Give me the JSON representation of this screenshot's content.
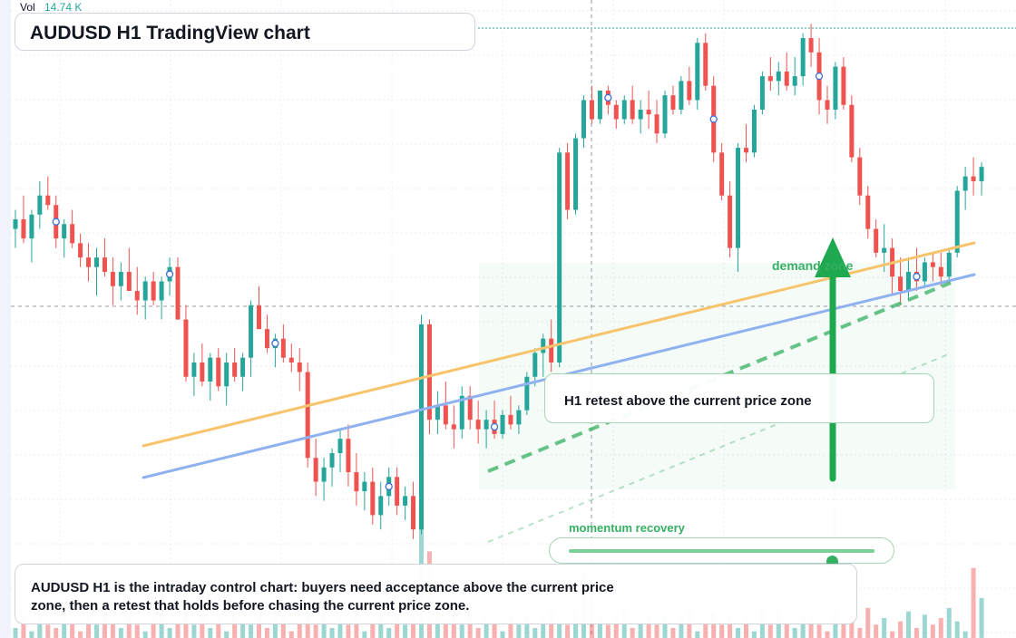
{
  "header": {
    "vol_label": "Vol",
    "vol_value": "14.74 K",
    "title": "AUDUSD H1 TradingView chart"
  },
  "annotations": {
    "callout": "H1 retest above the current price zone",
    "zone_label": "demand zone",
    "momentum_label": "momentum recovery",
    "momentum_level": 0.86,
    "description": "AUDUSD H1 is the intraday control chart: buyers need acceptance above the current price zone, then a retest that holds before chasing the current price zone."
  },
  "colors": {
    "up": "#26a69a",
    "down": "#ef5350",
    "trend_orange": "#f7c46c",
    "trend_blue": "#8fb1f0",
    "accent_green": "#35b063"
  },
  "chart_data": {
    "type": "candlestick",
    "symbol": "AUDUSD",
    "timeframe": "H1",
    "ylim": [
      0,
      100
    ],
    "x_count": 120,
    "candles": [
      [
        66,
        70,
        62,
        68
      ],
      [
        68,
        73,
        63,
        64
      ],
      [
        64,
        70,
        59,
        69
      ],
      [
        69,
        76,
        66,
        73
      ],
      [
        73,
        77,
        70,
        71
      ],
      [
        71,
        73,
        62,
        64
      ],
      [
        64,
        68,
        60,
        67
      ],
      [
        67,
        70,
        62,
        63
      ],
      [
        63,
        65,
        58,
        60
      ],
      [
        60,
        63,
        55,
        58
      ],
      [
        58,
        62,
        52,
        60
      ],
      [
        60,
        64,
        56,
        57
      ],
      [
        57,
        60,
        50,
        54
      ],
      [
        54,
        59,
        51,
        57
      ],
      [
        57,
        62,
        53,
        53
      ],
      [
        53,
        58,
        48,
        51
      ],
      [
        51,
        56,
        47,
        55
      ],
      [
        55,
        57,
        50,
        51
      ],
      [
        51,
        56,
        47,
        55
      ],
      [
        55,
        60,
        52,
        58
      ],
      [
        58,
        60,
        47,
        47
      ],
      [
        47,
        50,
        34,
        35
      ],
      [
        35,
        40,
        31,
        38
      ],
      [
        38,
        42,
        33,
        34
      ],
      [
        34,
        40,
        30,
        39
      ],
      [
        39,
        41,
        32,
        33
      ],
      [
        33,
        40,
        29,
        38
      ],
      [
        38,
        41,
        34,
        35
      ],
      [
        35,
        40,
        32,
        39
      ],
      [
        39,
        51,
        35,
        50
      ],
      [
        50,
        54,
        45,
        45
      ],
      [
        45,
        48,
        40,
        41
      ],
      [
        41,
        44,
        37,
        43
      ],
      [
        43,
        46,
        38,
        39
      ],
      [
        39,
        42,
        36,
        38
      ],
      [
        38,
        41,
        32,
        36
      ],
      [
        36,
        38,
        16,
        18
      ],
      [
        18,
        22,
        10,
        13
      ],
      [
        13,
        18,
        9,
        16
      ],
      [
        16,
        20,
        12,
        19
      ],
      [
        19,
        24,
        15,
        22
      ],
      [
        22,
        25,
        12,
        15
      ],
      [
        15,
        19,
        8,
        11
      ],
      [
        11,
        15,
        7,
        13
      ],
      [
        13,
        16,
        4,
        6
      ],
      [
        6,
        13,
        3,
        10
      ],
      [
        10,
        16,
        8,
        14
      ],
      [
        14,
        16,
        6,
        8
      ],
      [
        8,
        12,
        5,
        10
      ],
      [
        10,
        13,
        1,
        3
      ],
      [
        3,
        48,
        2,
        46
      ],
      [
        46,
        47,
        23,
        26
      ],
      [
        26,
        32,
        23,
        29
      ],
      [
        29,
        34,
        24,
        25
      ],
      [
        25,
        29,
        20,
        24
      ],
      [
        24,
        33,
        22,
        31
      ],
      [
        31,
        33,
        24,
        26
      ],
      [
        26,
        30,
        21,
        24
      ],
      [
        24,
        28,
        20,
        26
      ],
      [
        26,
        30,
        22,
        23
      ],
      [
        23,
        28,
        22,
        27
      ],
      [
        27,
        31,
        24,
        25
      ],
      [
        25,
        29,
        23,
        28
      ],
      [
        28,
        36,
        27,
        35
      ],
      [
        35,
        41,
        33,
        40
      ],
      [
        40,
        44,
        35,
        43
      ],
      [
        43,
        47,
        36,
        38
      ],
      [
        38,
        83,
        37,
        82
      ],
      [
        82,
        84,
        68,
        70
      ],
      [
        70,
        86,
        69,
        85
      ],
      [
        85,
        94,
        83,
        93
      ],
      [
        93,
        96,
        88,
        89
      ],
      [
        89,
        95,
        88,
        95
      ],
      [
        95,
        96,
        90,
        92
      ],
      [
        92,
        93,
        87,
        89
      ],
      [
        89,
        94,
        88,
        93
      ],
      [
        93,
        96,
        88,
        89
      ],
      [
        89,
        93,
        86,
        91
      ],
      [
        91,
        95,
        87,
        90
      ],
      [
        90,
        93,
        84,
        86
      ],
      [
        86,
        95,
        85,
        94
      ],
      [
        94,
        96,
        90,
        91
      ],
      [
        91,
        98,
        90,
        97
      ],
      [
        97,
        100,
        92,
        93
      ],
      [
        93,
        106,
        91,
        105
      ],
      [
        105,
        107,
        95,
        96
      ],
      [
        96,
        98,
        80,
        82
      ],
      [
        82,
        84,
        72,
        73
      ],
      [
        73,
        76,
        60,
        62
      ],
      [
        62,
        84,
        57,
        83
      ],
      [
        83,
        88,
        80,
        82
      ],
      [
        82,
        92,
        81,
        91
      ],
      [
        91,
        99,
        90,
        98
      ],
      [
        98,
        102,
        95,
        97
      ],
      [
        97,
        101,
        94,
        99
      ],
      [
        99,
        103,
        95,
        96
      ],
      [
        96,
        102,
        94,
        98
      ],
      [
        98,
        107,
        96,
        106
      ],
      [
        106,
        109,
        100,
        103
      ],
      [
        103,
        106,
        90,
        93
      ],
      [
        93,
        96,
        88,
        91
      ],
      [
        91,
        101,
        89,
        100
      ],
      [
        100,
        102,
        91,
        92
      ],
      [
        92,
        94,
        80,
        81
      ],
      [
        81,
        83,
        71,
        73
      ],
      [
        73,
        75,
        64,
        66
      ],
      [
        66,
        68,
        60,
        61
      ],
      [
        61,
        67,
        57,
        62
      ],
      [
        62,
        64,
        52,
        56
      ],
      [
        56,
        60,
        50,
        53
      ],
      [
        53,
        60,
        51,
        57
      ],
      [
        57,
        62,
        53,
        55
      ],
      [
        55,
        60,
        54,
        59
      ],
      [
        59,
        61,
        55,
        58
      ],
      [
        58,
        61,
        54,
        56
      ],
      [
        56,
        62,
        55,
        61
      ],
      [
        61,
        75,
        60,
        74
      ],
      [
        74,
        79,
        70,
        77
      ],
      [
        77,
        81,
        73,
        76
      ],
      [
        76,
        80,
        73,
        79
      ]
    ],
    "volume": [
      3,
      7,
      2,
      6,
      4,
      3,
      8,
      5,
      2,
      6,
      4,
      9,
      5,
      3,
      7,
      4,
      2,
      6,
      8,
      3,
      5,
      9,
      4,
      7,
      3,
      6,
      2,
      8,
      5,
      4,
      7,
      3,
      9,
      6,
      2,
      5,
      8,
      4,
      7,
      3,
      6,
      4,
      9,
      2,
      5,
      7,
      3,
      8,
      4,
      6,
      34,
      26,
      8,
      5,
      7,
      4,
      9,
      3,
      6,
      5,
      2,
      8,
      4,
      7,
      3,
      6,
      9,
      5,
      4,
      8,
      20,
      12,
      7,
      4,
      6,
      9,
      3,
      5,
      8,
      4,
      7,
      3,
      6,
      9,
      2,
      5,
      8,
      4,
      7,
      3,
      6,
      2,
      9,
      4,
      8,
      5,
      3,
      7,
      6,
      4,
      2,
      8,
      5,
      7,
      3,
      9,
      4,
      6,
      2,
      5,
      8,
      3,
      7,
      4,
      6,
      9,
      5,
      2,
      21,
      12
    ]
  }
}
